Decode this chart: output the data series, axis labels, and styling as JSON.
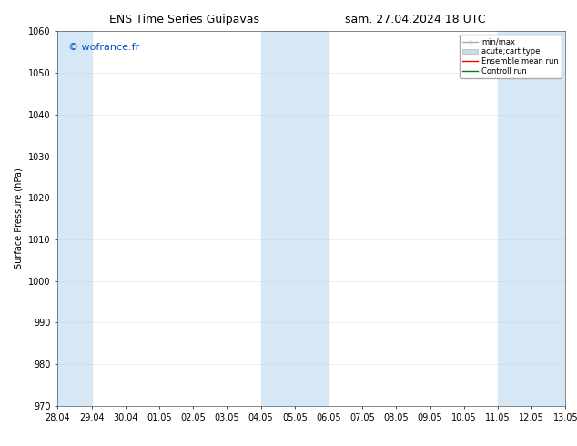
{
  "title_left": "ENS Time Series Guipavas",
  "title_right": "sam. 27.04.2024 18 UTC",
  "ylabel": "Surface Pressure (hPa)",
  "ylim": [
    970,
    1060
  ],
  "yticks": [
    970,
    980,
    990,
    1000,
    1010,
    1020,
    1030,
    1040,
    1050,
    1060
  ],
  "total_days": 15,
  "xtick_labels": [
    "28.04",
    "29.04",
    "30.04",
    "01.05",
    "02.05",
    "03.05",
    "04.05",
    "05.05",
    "06.05",
    "07.05",
    "08.05",
    "09.05",
    "10.05",
    "11.05",
    "12.05",
    "13.05"
  ],
  "band_ranges": [
    [
      0,
      1
    ],
    [
      6,
      8
    ],
    [
      13,
      15
    ]
  ],
  "band_color": "#d6e8f5",
  "watermark_text": "© wofrance.fr",
  "watermark_color": "#0055cc",
  "background_color": "#ffffff",
  "plot_bg_color": "#ffffff",
  "grid_color": "#cccccc",
  "title_fontsize": 9,
  "axis_label_fontsize": 7,
  "tick_fontsize": 7,
  "legend_fontsize": 6,
  "watermark_fontsize": 8,
  "legend_minmax_color": "#aaaaaa",
  "legend_acute_facecolor": "#c8dce8",
  "legend_ens_color": "#ff0000",
  "legend_ctrl_color": "#008000"
}
